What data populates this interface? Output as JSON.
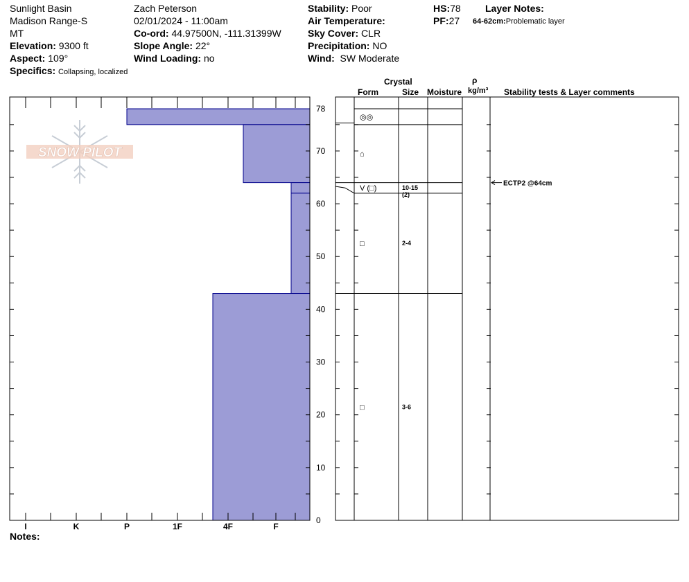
{
  "header": {
    "location": "Sunlight Basin",
    "range": "Madison Range-S",
    "state": "MT",
    "elevation_label": "Elevation:",
    "elevation": "9300 ft",
    "aspect_label": "Aspect:",
    "aspect": "109°",
    "specifics_label": "Specifics:",
    "specifics": "Collapsing, localized",
    "observer": "Zach Peterson",
    "datetime": "02/01/2024 - 11:00am",
    "coord_label": "Co-ord:",
    "coord": "44.97500N, -111.31399W",
    "slope_label": "Slope Angle:",
    "slope": "22°",
    "wind_loading_label": "Wind Loading:",
    "wind_loading": "no",
    "stability_label": "Stability:",
    "stability": "Poor",
    "air_temp_label": "Air Temperature:",
    "air_temp": "",
    "sky_label": "Sky Cover:",
    "sky": "CLR",
    "precip_label": "Precipitation:",
    "precip": "NO",
    "wind_label": "Wind:",
    "wind": "SW Moderate",
    "hs_label": "HS:",
    "hs": "78",
    "pf_label": "PF:",
    "pf": "27",
    "layer_notes_label": "Layer Notes:",
    "layer_note_depth": "64-62cm:",
    "layer_note_text": "Problematic layer"
  },
  "logo_text": "SNOW PILOT",
  "notes_label": "Notes:",
  "colors": {
    "hardness_fill": "#9c9cd6",
    "hardness_stroke": "#00008b"
  },
  "columns": {
    "crystal": "Crystal",
    "form": "Form",
    "size": "Size",
    "moisture": "Moisture",
    "rho": "ρ",
    "density_unit": "kg/m³",
    "stability": "Stability tests & Layer comments"
  },
  "chart_data": {
    "type": "bar",
    "orientation": "horizontal",
    "ylabel": "",
    "ylim": [
      0,
      78
    ],
    "y_ticks": [
      0,
      10,
      20,
      30,
      40,
      50,
      60,
      70,
      78
    ],
    "x_categories": [
      "I",
      "K",
      "P",
      "1F",
      "4F",
      "F"
    ],
    "layers": [
      {
        "top": 78,
        "bottom": 75,
        "hardness": "P"
      },
      {
        "top": 75,
        "bottom": 64,
        "hardness": "4F+"
      },
      {
        "top": 64,
        "bottom": 62,
        "hardness": "F+"
      },
      {
        "top": 62,
        "bottom": 43,
        "hardness": "F+"
      },
      {
        "top": 43,
        "bottom": 0,
        "hardness": "4F-"
      }
    ],
    "crystal_layers": [
      {
        "top": 78,
        "bottom": 75,
        "form": "◎◎",
        "size": ""
      },
      {
        "top": 75,
        "bottom": 64,
        "form": "⌂",
        "size": ""
      },
      {
        "top": 64,
        "bottom": 62,
        "form": "V (□)",
        "size": "10-15",
        "size2": "(2)"
      },
      {
        "top": 62,
        "bottom": 43,
        "form": "□",
        "size": "2-4"
      },
      {
        "top": 43,
        "bottom": 0,
        "form": "□",
        "size": "3-6"
      }
    ],
    "stability_tests": [
      {
        "depth": 64,
        "label": "ECTP2 @64cm"
      }
    ]
  }
}
